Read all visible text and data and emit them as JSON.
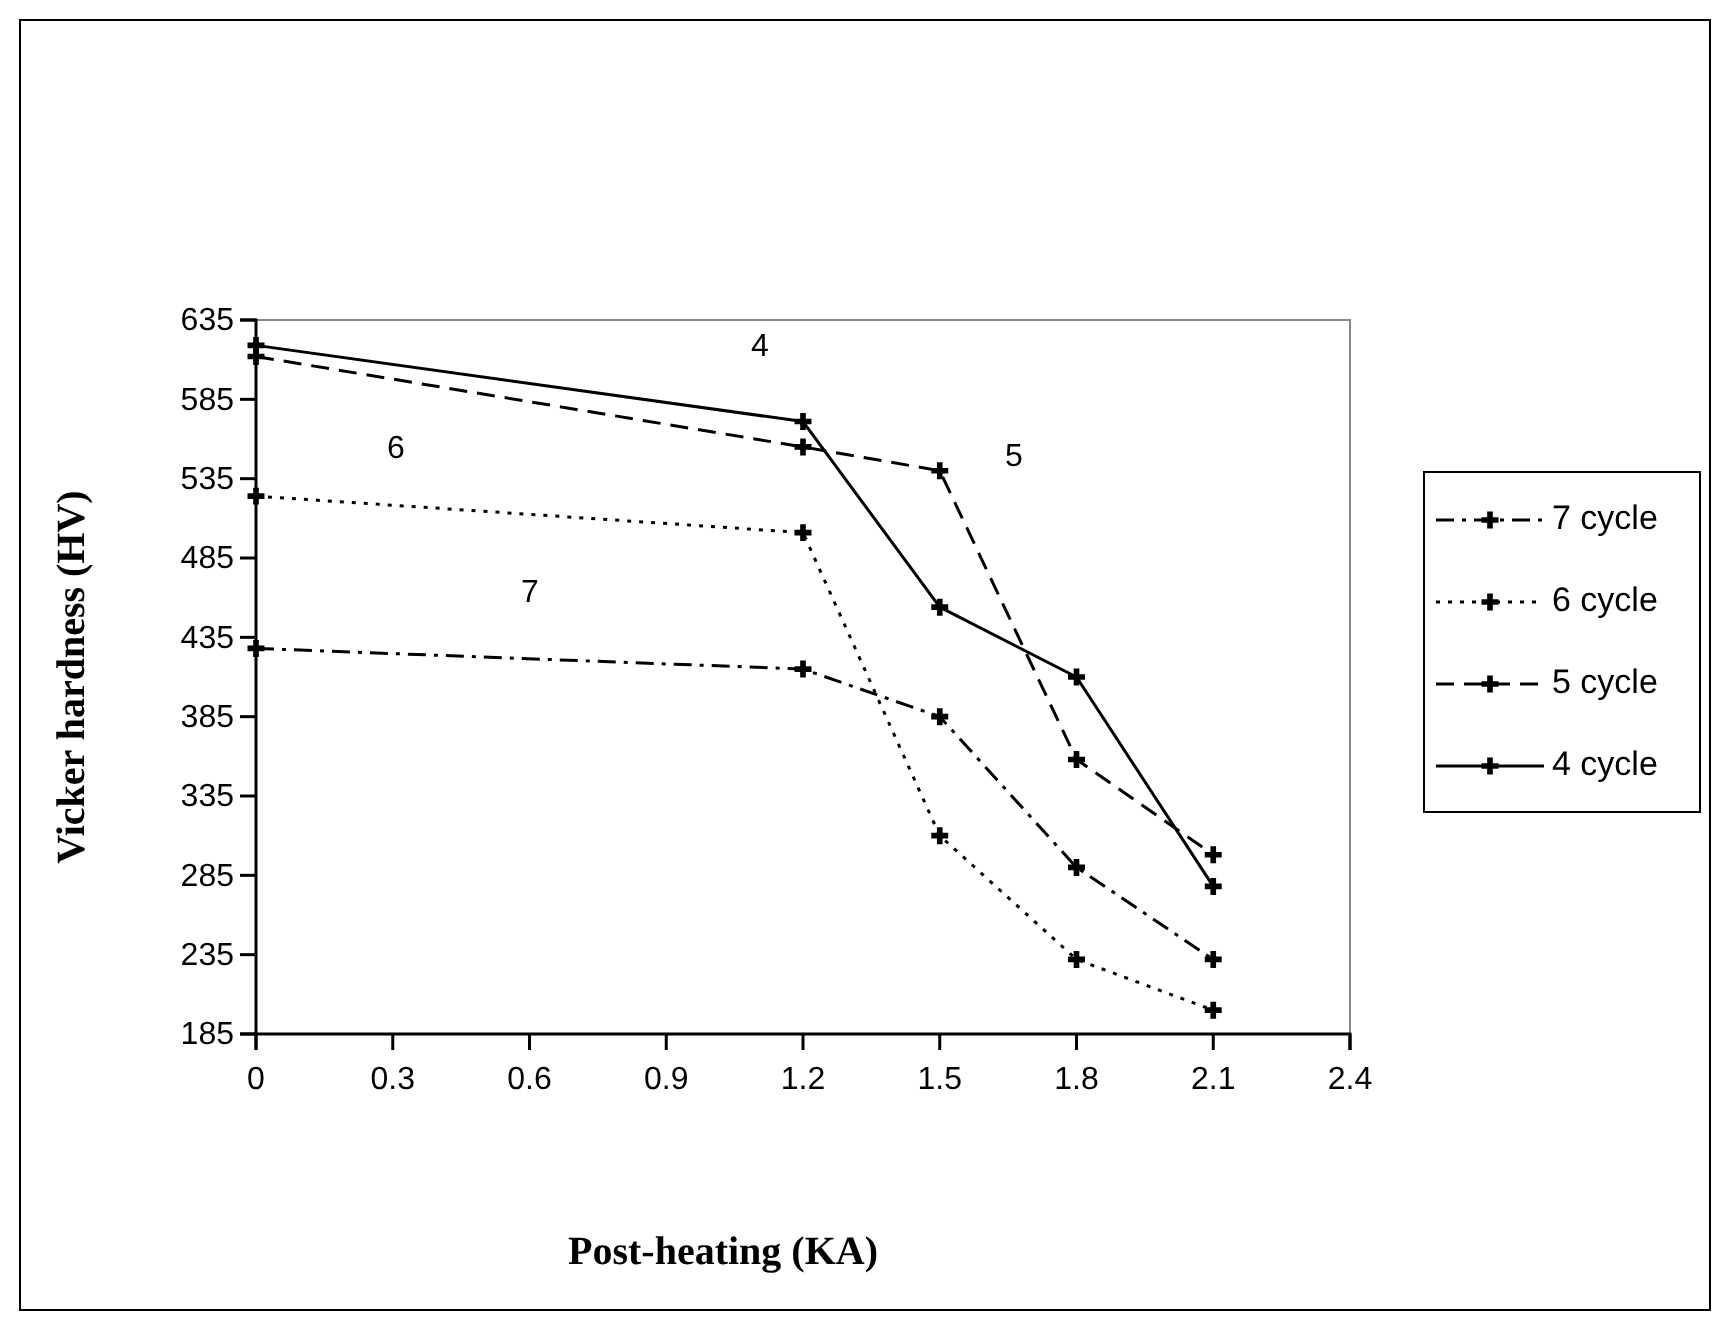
{
  "chart_data": {
    "type": "line",
    "xlabel": "Post-heating (KA)",
    "ylabel": "Vicker hardness (HV)",
    "x": [
      0,
      1.2,
      1.5,
      1.8,
      2.1
    ],
    "xlim": [
      0,
      2.4
    ],
    "xticks": [
      0,
      0.3,
      0.6,
      0.9,
      1.2,
      1.5,
      1.8,
      2.1,
      2.4
    ],
    "ylim": [
      185,
      635
    ],
    "yticks": [
      185,
      235,
      285,
      335,
      385,
      435,
      485,
      535,
      585,
      635
    ],
    "grid": false,
    "legend": "right",
    "marker": "cross",
    "series": [
      {
        "name": "7 cycle",
        "color": "#000000",
        "line_style": "dashdot",
        "values": [
          428,
          415,
          385,
          290,
          232
        ]
      },
      {
        "name": "6 cycle",
        "color": "#000000",
        "line_style": "dotted",
        "values": [
          524,
          501,
          310,
          232,
          200
        ]
      },
      {
        "name": "5 cycle",
        "color": "#000000",
        "line_style": "dashed",
        "values": [
          612,
          555,
          540,
          358,
          298
        ]
      },
      {
        "name": "4 cycle",
        "color": "#000000",
        "line_style": "solid",
        "values": [
          619,
          571,
          454,
          410,
          278
        ]
      }
    ],
    "annotations": [
      "4",
      "6",
      "5",
      "7"
    ]
  }
}
